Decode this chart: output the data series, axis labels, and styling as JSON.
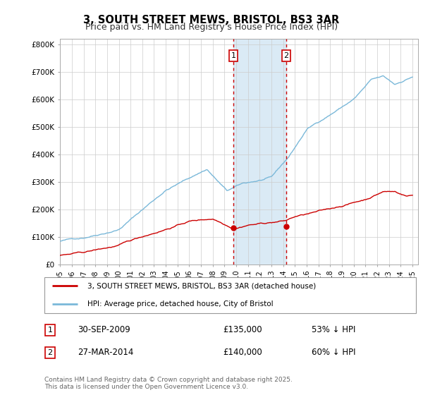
{
  "title": "3, SOUTH STREET MEWS, BRISTOL, BS3 3AR",
  "subtitle": "Price paid vs. HM Land Registry's House Price Index (HPI)",
  "title_fontsize": 10.5,
  "subtitle_fontsize": 9,
  "legend_line1": "3, SOUTH STREET MEWS, BRISTOL, BS3 3AR (detached house)",
  "legend_line2": "HPI: Average price, detached house, City of Bristol",
  "annotation1_date": "30-SEP-2009",
  "annotation1_price": "£135,000",
  "annotation1_pct": "53% ↓ HPI",
  "annotation2_date": "27-MAR-2014",
  "annotation2_price": "£140,000",
  "annotation2_pct": "60% ↓ HPI",
  "footer": "Contains HM Land Registry data © Crown copyright and database right 2025.\nThis data is licensed under the Open Government Licence v3.0.",
  "hpi_color": "#7ab8d9",
  "price_color": "#cc0000",
  "vline1_x": 2009.75,
  "vline2_x": 2014.25,
  "shade_x1": 2009.75,
  "shade_x2": 2014.25,
  "marker1_x": 2009.75,
  "marker1_y": 135000,
  "marker2_x": 2014.25,
  "marker2_y": 140000,
  "ylim": [
    0,
    820000
  ],
  "xlim_start": 1995.0,
  "xlim_end": 2025.5,
  "bg_color": "#f7f7f7"
}
